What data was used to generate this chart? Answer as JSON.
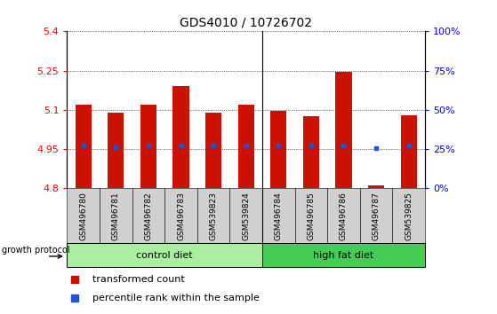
{
  "title": "GDS4010 / 10726702",
  "samples": [
    "GSM496780",
    "GSM496781",
    "GSM496782",
    "GSM496783",
    "GSM539823",
    "GSM539824",
    "GSM496784",
    "GSM496785",
    "GSM496786",
    "GSM496787",
    "GSM539825"
  ],
  "bar_tops": [
    5.12,
    5.09,
    5.12,
    5.19,
    5.09,
    5.12,
    5.095,
    5.075,
    5.245,
    4.81,
    5.08
  ],
  "bar_bottom": 4.8,
  "blue_dots": [
    4.965,
    4.958,
    4.965,
    4.963,
    4.963,
    4.963,
    4.963,
    4.963,
    4.965,
    4.953,
    4.963
  ],
  "ylim": [
    4.8,
    5.4
  ],
  "yticks_left": [
    4.8,
    4.95,
    5.1,
    5.25,
    5.4
  ],
  "yticks_right_vals": [
    0,
    25,
    50,
    75,
    100
  ],
  "bar_color": "#cc1100",
  "dot_color": "#2255cc",
  "control_diet_count": 6,
  "high_fat_count": 5,
  "control_color": "#aaeea0",
  "high_fat_color": "#44cc55",
  "label_bg_color": "#d0d0d0",
  "legend_red_label": "transformed count",
  "legend_blue_label": "percentile rank within the sample",
  "growth_protocol_label": "growth protocol"
}
